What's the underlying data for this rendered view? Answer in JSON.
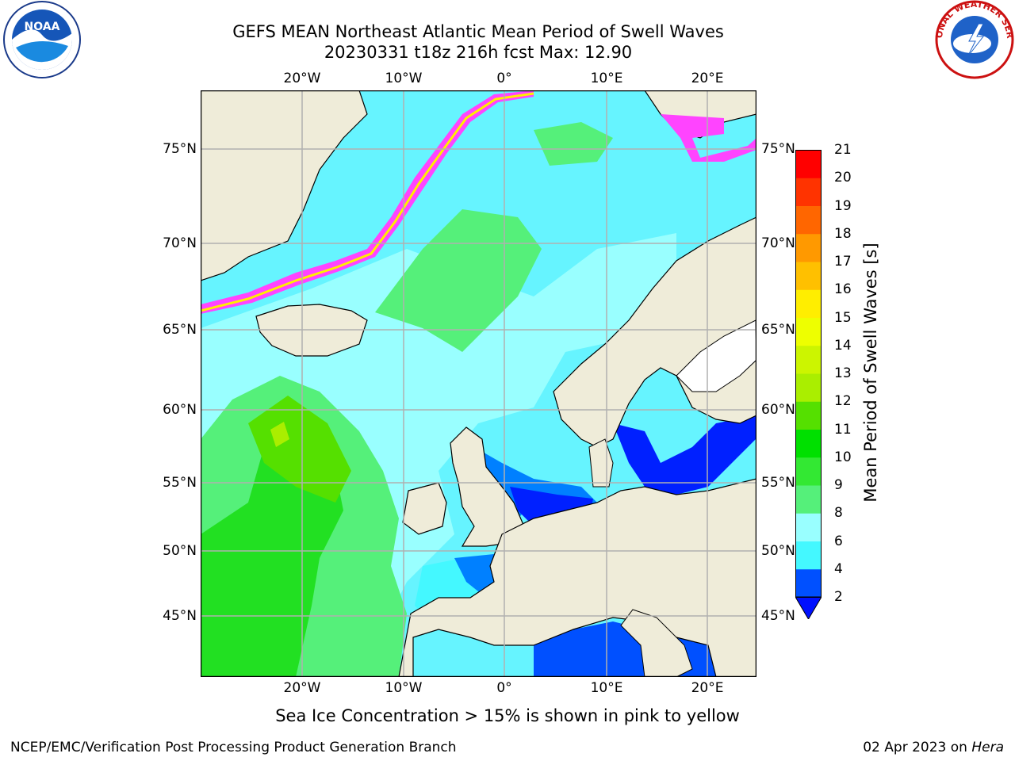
{
  "title_line1": "GEFS MEAN Northeast Atlantic Mean Period of Swell Waves",
  "title_line2": "20230331 t18z 216h fcst   Max: 12.90",
  "lon_ticks": [
    "20°W",
    "10°W",
    "0°",
    "10°E",
    "20°E"
  ],
  "lat_ticks": [
    "75°N",
    "70°N",
    "65°N",
    "60°N",
    "55°N",
    "50°N",
    "45°N"
  ],
  "colorbar": {
    "label": "Mean Period of Swell Waves [s]",
    "ticks": [
      "2",
      "4",
      "6",
      "8",
      "9",
      "10",
      "11",
      "12",
      "13",
      "14",
      "15",
      "16",
      "17",
      "18",
      "19",
      "20",
      "21"
    ],
    "colors": [
      "#0050ff",
      "#00e8ff",
      "#44f8ff",
      "#99ffff",
      "#55f07a",
      "#33e833",
      "#00e000",
      "#55e000",
      "#aaee00",
      "#ccf500",
      "#eeff00",
      "#ffee00",
      "#ffc000",
      "#ff9900",
      "#ff6600",
      "#ff3300",
      "#ff0000"
    ],
    "under_color": "#0010ff"
  },
  "map_colors": {
    "land": "#efecd9",
    "ocean_base": "#66f4ff",
    "low_period": "#0020ff",
    "mid_blue": "#0080ff",
    "light_cyan": "#99ffff",
    "green_light": "#55f07a",
    "green": "#22e022",
    "ice_pink": "#ff44ff",
    "ice_yellow": "#ffee00",
    "grid": "#b0b0b0"
  },
  "ice_note": "Sea Ice Concentration > 15% is shown in pink to yellow",
  "footer_left": "NCEP/EMC/Verification Post Processing Product Generation Branch",
  "footer_date": "02 Apr 2023 on",
  "footer_host": "Hera",
  "logos": {
    "noaa_text": "NOAA",
    "nws_text": "NATIONAL WEATHER SERVICE"
  }
}
